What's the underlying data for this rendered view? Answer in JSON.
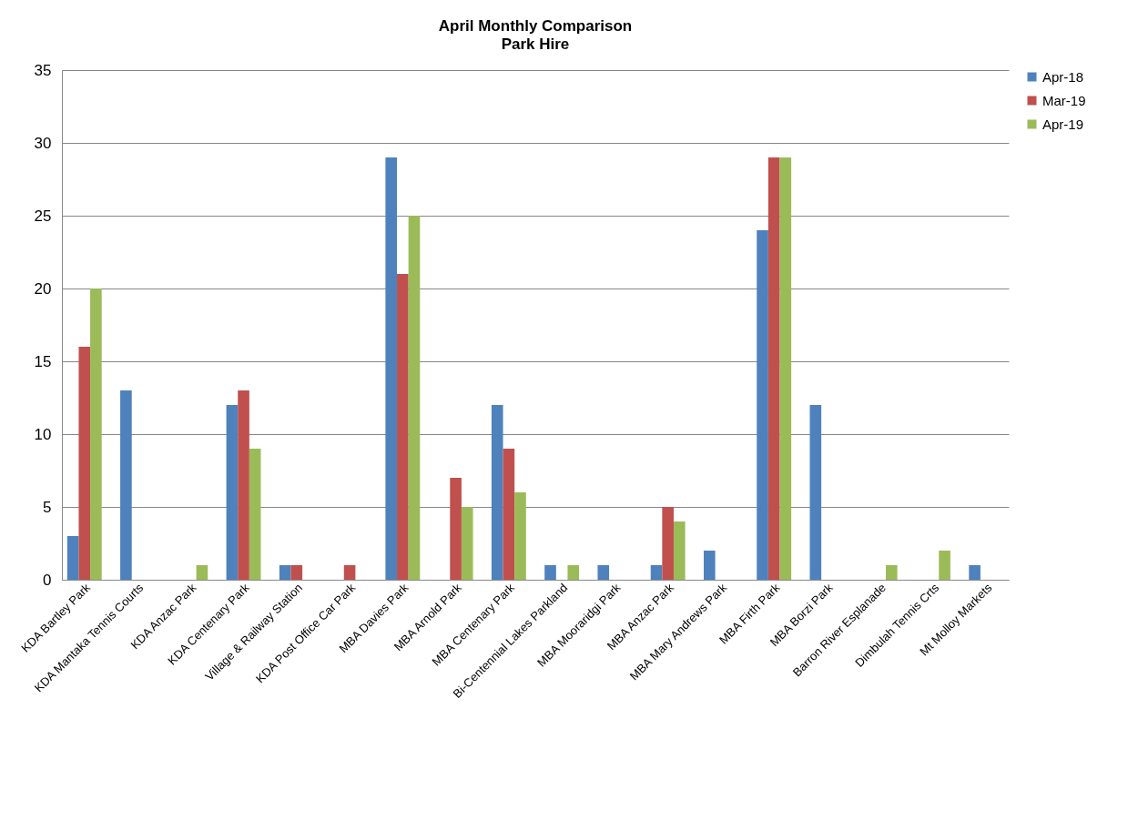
{
  "chart_data": {
    "type": "bar",
    "title": "April  Monthly Comparison",
    "subtitle": "Park Hire",
    "categories": [
      "KDA Bartley Park",
      "KDA Mantaka Tennis Courts",
      "KDA Anzac Park",
      "KDA Centenary Park",
      "Village & Railway Station",
      "KDA Post Office Car Park",
      "MBA Davies Park",
      "MBA Arnold Park",
      "MBA Centenary Park",
      "Bi-Centennial Lakes Parkland",
      "MBA Mooraridgi  Park",
      "MBA Anzac Park",
      "MBA Mary Andrews Park",
      "MBA Firth    Park",
      "MBA Borzi  Park",
      "Barron River  Esplanade",
      "Dimbulah Tennis Crts",
      "Mt Molloy Markets"
    ],
    "series": [
      {
        "name": "Apr-18",
        "color": "#4f81bd",
        "values": [
          3,
          13,
          null,
          12,
          1,
          null,
          29,
          null,
          12,
          1,
          1,
          1,
          2,
          24,
          12,
          null,
          null,
          1
        ]
      },
      {
        "name": "Mar-19",
        "color": "#c0504d",
        "values": [
          16,
          null,
          null,
          13,
          1,
          1,
          21,
          7,
          9,
          null,
          null,
          5,
          null,
          29,
          null,
          null,
          null,
          null
        ]
      },
      {
        "name": "Apr-19",
        "color": "#9bbb59",
        "values": [
          20,
          null,
          1,
          9,
          null,
          null,
          25,
          5,
          6,
          1,
          null,
          4,
          null,
          29,
          null,
          1,
          2,
          null
        ]
      }
    ],
    "ylim": [
      0,
      35
    ],
    "yticks": [
      0,
      5,
      10,
      15,
      20,
      25,
      30,
      35
    ],
    "grid": "y",
    "legend": "right"
  }
}
